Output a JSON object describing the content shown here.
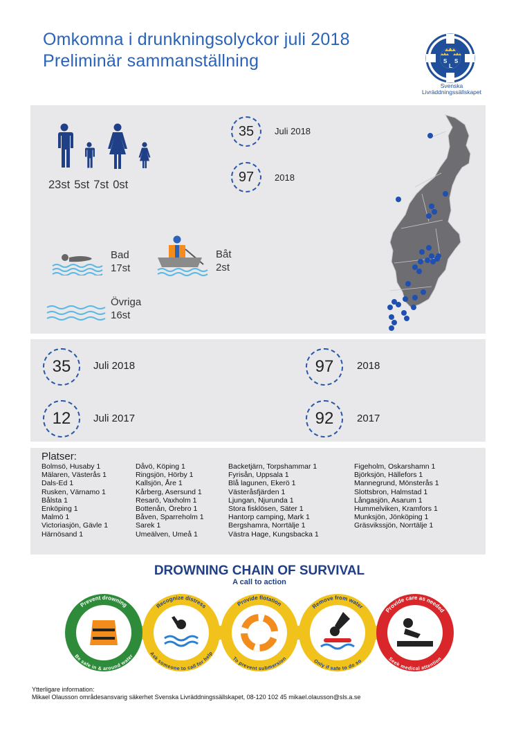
{
  "header": {
    "title_line1": "Omkomna i drunkningsolyckor juli 2018",
    "title_line2": "Preliminär sammanställning",
    "logo_letters": [
      "S",
      "L",
      "S"
    ],
    "logo_text_line1": "Svenska",
    "logo_text_line2": "Livräddningssällskapet"
  },
  "victims": {
    "icons": [
      "man-icon",
      "boy-icon",
      "woman-icon",
      "girl-icon"
    ],
    "counts": [
      "23st",
      "5st",
      "7st",
      "0st"
    ]
  },
  "top_stats": [
    {
      "value": "35",
      "label": "Juli 2018"
    },
    {
      "value": "97",
      "label": "2018"
    }
  ],
  "activities": {
    "bad": {
      "label": "Bad",
      "count": "17st"
    },
    "bat": {
      "label": "Båt",
      "count": "2st"
    },
    "ovriga": {
      "label": "Övriga",
      "count": "16st"
    }
  },
  "comparison": [
    {
      "value": "35",
      "label": "Juli 2018"
    },
    {
      "value": "97",
      "label": "2018"
    },
    {
      "value": "12",
      "label": "Juli 2017"
    },
    {
      "value": "92",
      "label": "2017"
    }
  ],
  "places": {
    "title": "Platser:",
    "columns": [
      [
        "Bolmsö, Husaby 1",
        "Mälaren, Västerås 1",
        "Dals-Ed 1",
        "Rusken, Värnamo 1",
        "Bålsta 1",
        "Enköping 1",
        "Malmö 1",
        "Victoriasjön, Gävle 1",
        "Härnösand 1"
      ],
      [
        "Dåvö, Köping 1",
        "Ringsjön, Hörby 1",
        "Kallsjön, Åre 1",
        "Kårberg, Asersund 1",
        "Resarö, Vaxholm 1",
        "Bottenån, Örebro 1",
        "Båven, Sparreholm 1",
        "Sarek 1",
        "Umeälven, Umeå 1"
      ],
      [
        "Backetjärn, Torpshammar 1",
        "Fyrisån, Uppsala 1",
        "Blå lagunen, Ekerö 1",
        "Västeråsfjärden 1",
        "Ljungan, Njurunda 1",
        "Stora fisklösen, Säter 1",
        "Hantorp camping, Mark 1",
        "Bergshamra, Norrtälje 1",
        "Västra Hage, Kungsbacka 1"
      ],
      [
        "Figeholm, Oskarshamn 1",
        "Björksjön, Hällefors 1",
        "Mannegrund, Mönsterås 1",
        "Slottsbron, Halmstad 1",
        "Långasjön, Asarum 1",
        "Hummelviken, Kramfors 1",
        "Munksjön, Jönköping 1",
        "Gräsvikssjön, Norrtälje 1"
      ]
    ]
  },
  "banner": {
    "title": "DROWNING CHAIN OF SURVIVAL",
    "subtitle": "A call to action",
    "links": [
      {
        "top": "Prevent drowning",
        "bottom": "Be safe in & around water",
        "color": "#2e8b3a",
        "icon": "life-vest-icon"
      },
      {
        "top": "Recognize distress",
        "bottom": "Ask someone to call for help",
        "color": "#f1c21b",
        "icon": "drowning-person-icon"
      },
      {
        "top": "Provide flotation",
        "bottom": "To prevent submersion",
        "color": "#f1c21b",
        "icon": "life-ring-icon"
      },
      {
        "top": "Remove from water",
        "bottom": "Only if safe to do so",
        "color": "#f1c21b",
        "icon": "rescue-hand-icon"
      },
      {
        "top": "Provide care as needed",
        "bottom": "Seek medical attention",
        "color": "#d9262a",
        "icon": "cpr-icon"
      }
    ]
  },
  "footer": {
    "label": "Ytterligare information:",
    "contact": "Mikael Olausson områdesansvarig säkerhet Svenska Livräddningssällskapet, 08-120 102 45 mikael.olausson@sls.a.se"
  },
  "colors": {
    "title_blue": "#2a63b8",
    "panel_gray": "#e8e8ea",
    "figure_navy": "#1f3f86",
    "map_gray": "#6e6e72",
    "dot_blue": "#1f4fb0",
    "water_blue": "#5bb8e6"
  }
}
